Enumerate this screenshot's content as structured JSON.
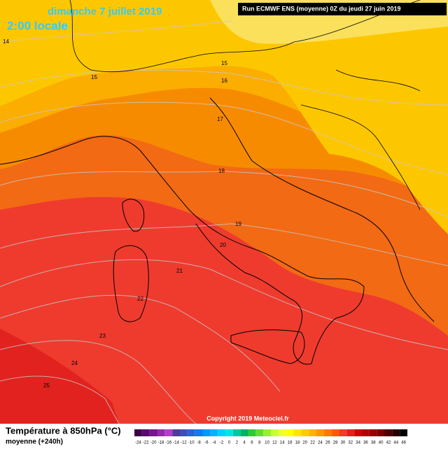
{
  "header": {
    "date": "dimanche 7 juillet 2019",
    "time": "2:00 locale",
    "run": "Run ECMWF ENS (moyenne) 0Z du jeudi 27 juin 2019"
  },
  "map": {
    "copyright": "Copyright 2019 Meteociel.fr",
    "contour_labels": [
      14,
      15,
      15,
      16,
      17,
      18,
      19,
      20,
      21,
      22,
      23,
      24,
      25
    ]
  },
  "legend": {
    "title": "Température à 850hPa (°C)",
    "subtitle": "moyenne   (+240h)",
    "scale": [
      -24,
      -22,
      -20,
      -18,
      -16,
      -14,
      -12,
      -10,
      -8,
      -6,
      -4,
      -2,
      0,
      2,
      4,
      6,
      8,
      10,
      12,
      14,
      16,
      18,
      20,
      22,
      24,
      26,
      28,
      30,
      32,
      34,
      36,
      38,
      40,
      42,
      44,
      46
    ],
    "colors": [
      "#3c0046",
      "#5a0a6e",
      "#78148c",
      "#9628aa",
      "#b43cc8",
      "#503c96",
      "#3c50b4",
      "#2864d2",
      "#1478f0",
      "#0096ff",
      "#00b4ff",
      "#00d2ff",
      "#00e6e6",
      "#00c8a0",
      "#00b464",
      "#32c832",
      "#64dc32",
      "#96f032",
      "#c8ff32",
      "#f0ff32",
      "#ffff00",
      "#ffe600",
      "#ffcc00",
      "#ffb400",
      "#ff9600",
      "#ff7800",
      "#ff5a00",
      "#f03c28",
      "#e61e1e",
      "#d20000",
      "#b40000",
      "#960000",
      "#780000",
      "#500000",
      "#280000",
      "#000000"
    ]
  }
}
